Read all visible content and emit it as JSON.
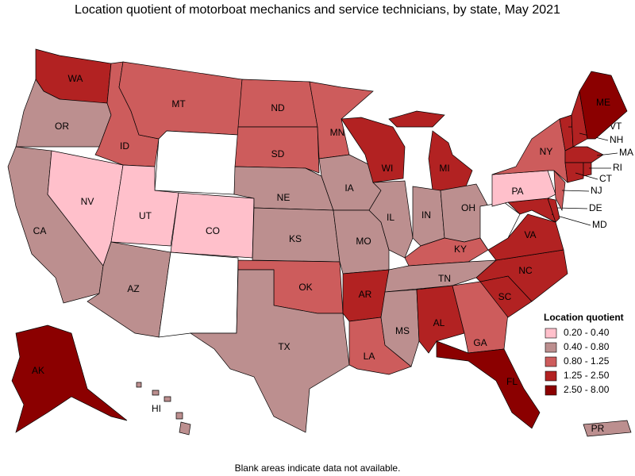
{
  "title": "Location quotient of motorboat mechanics and service technicians, by state, May 2021",
  "note": "Blank areas indicate data not available.",
  "legend": {
    "title": "Location quotient",
    "items": [
      {
        "label": "0.20 - 0.40",
        "color": "#ffc0cb"
      },
      {
        "label": "0.40 - 0.80",
        "color": "#bc8f8f"
      },
      {
        "label": "0.80 - 1.25",
        "color": "#cd5c5c"
      },
      {
        "label": "1.25 - 2.50",
        "color": "#b22222"
      },
      {
        "label": "2.50 - 8.00",
        "color": "#8b0000"
      }
    ]
  },
  "states": [
    {
      "label": "WA",
      "class": 3
    },
    {
      "label": "OR",
      "class": 1
    },
    {
      "label": "CA",
      "class": 1
    },
    {
      "label": "NV",
      "class": 0
    },
    {
      "label": "ID",
      "class": 2
    },
    {
      "label": "MT",
      "class": 2
    },
    {
      "label": null,
      "class": null
    },
    {
      "label": "UT",
      "class": 0
    },
    {
      "label": "CO",
      "class": 0
    },
    {
      "label": "AZ",
      "class": 1
    },
    {
      "label": null,
      "class": null
    },
    {
      "label": "ND",
      "class": 2
    },
    {
      "label": "SD",
      "class": 2
    },
    {
      "label": "NE",
      "class": 1
    },
    {
      "label": "KS",
      "class": 1
    },
    {
      "label": "OK",
      "class": 2
    },
    {
      "label": "TX",
      "class": 1
    },
    {
      "label": "MN",
      "class": 2
    },
    {
      "label": "IA",
      "class": 1
    },
    {
      "label": "MO",
      "class": 1
    },
    {
      "label": "AR",
      "class": 3
    },
    {
      "label": "LA",
      "class": 2
    },
    {
      "label": "WI",
      "class": 3
    },
    {
      "label": "IL",
      "class": 1
    },
    {
      "label": "MI",
      "class": 3
    },
    {
      "label": "IN",
      "class": 1
    },
    {
      "label": "OH",
      "class": 1
    },
    {
      "label": "KY",
      "class": 2
    },
    {
      "label": "TN",
      "class": 1
    },
    {
      "label": "MS",
      "class": 1
    },
    {
      "label": "AL",
      "class": 3
    },
    {
      "label": "GA",
      "class": 2
    },
    {
      "label": "FL",
      "class": 4
    },
    {
      "label": "SC",
      "class": 3
    },
    {
      "label": "NC",
      "class": 3
    },
    {
      "label": "VA",
      "class": 3
    },
    {
      "label": null,
      "class": null
    },
    {
      "label": "MD",
      "class": 3
    },
    {
      "label": "DE",
      "class": 3
    },
    {
      "label": "PA",
      "class": 0
    },
    {
      "label": "NJ",
      "class": 2
    },
    {
      "label": "NY",
      "class": 2
    },
    {
      "label": "VT",
      "class": 3
    },
    {
      "label": "NH",
      "class": 3
    },
    {
      "label": "ME",
      "class": 4
    },
    {
      "label": "MA",
      "class": 3
    },
    {
      "label": "CT",
      "class": 3
    },
    {
      "label": "RI",
      "class": 3
    },
    {
      "label": "AK",
      "class": 4
    },
    {
      "label": "HI",
      "class": 1
    },
    {
      "label": "PR",
      "class": 1
    }
  ]
}
